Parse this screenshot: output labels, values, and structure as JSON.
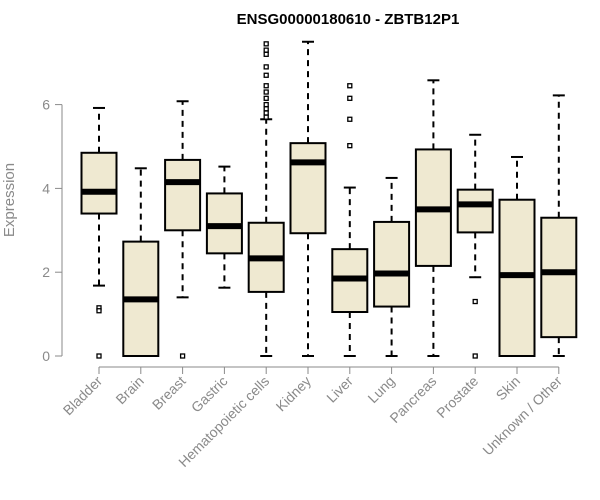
{
  "chart_data": {
    "type": "boxplot",
    "title": "ENSG00000180610 - ZBTB12P1",
    "xlabel": "",
    "ylabel": "Expression",
    "ylim": [
      0,
      7.6
    ],
    "yticks": [
      0,
      2,
      4,
      6
    ],
    "grid": false,
    "box_color": "#efe9d1",
    "categories": [
      "Bladder",
      "Brain",
      "Breast",
      "Gastric",
      "Hematopoietic cells",
      "Kidney",
      "Liver",
      "Lung",
      "Pancreas",
      "Prostate",
      "Skin",
      "Unknown / Other"
    ],
    "series": [
      {
        "category": "Bladder",
        "whisker_low": 1.68,
        "q1": 3.4,
        "median": 3.92,
        "q3": 4.85,
        "whisker_high": 5.92,
        "outliers": [
          1.15,
          1.08,
          0.0
        ]
      },
      {
        "category": "Brain",
        "whisker_low": 0.0,
        "q1": 0.0,
        "median": 1.35,
        "q3": 2.73,
        "whisker_high": 4.48,
        "outliers": []
      },
      {
        "category": "Breast",
        "whisker_low": 1.4,
        "q1": 3.0,
        "median": 4.15,
        "q3": 4.68,
        "whisker_high": 6.08,
        "outliers": [
          0.0
        ]
      },
      {
        "category": "Gastric",
        "whisker_low": 1.63,
        "q1": 2.45,
        "median": 3.1,
        "q3": 3.88,
        "whisker_high": 4.52,
        "outliers": []
      },
      {
        "category": "Hematopoietic cells",
        "whisker_low": 0.0,
        "q1": 1.53,
        "median": 2.33,
        "q3": 3.18,
        "whisker_high": 5.65,
        "outliers": [
          7.45,
          7.3,
          7.2,
          6.9,
          6.7,
          6.45,
          6.3,
          6.15,
          6.0,
          5.9,
          5.8,
          5.7
        ]
      },
      {
        "category": "Kidney",
        "whisker_low": 0.0,
        "q1": 2.93,
        "median": 4.62,
        "q3": 5.08,
        "whisker_high": 7.5,
        "outliers": []
      },
      {
        "category": "Liver",
        "whisker_low": 0.0,
        "q1": 1.05,
        "median": 1.85,
        "q3": 2.55,
        "whisker_high": 4.02,
        "outliers": [
          6.45,
          6.15,
          5.65,
          5.02
        ]
      },
      {
        "category": "Lung",
        "whisker_low": 0.0,
        "q1": 1.18,
        "median": 1.97,
        "q3": 3.2,
        "whisker_high": 4.25,
        "outliers": []
      },
      {
        "category": "Pancreas",
        "whisker_low": 0.0,
        "q1": 2.15,
        "median": 3.5,
        "q3": 4.93,
        "whisker_high": 6.58,
        "outliers": []
      },
      {
        "category": "Prostate",
        "whisker_low": 1.88,
        "q1": 2.95,
        "median": 3.62,
        "q3": 3.97,
        "whisker_high": 5.28,
        "outliers": [
          1.3,
          0.0
        ]
      },
      {
        "category": "Skin",
        "whisker_low": 0.0,
        "q1": 0.0,
        "median": 1.93,
        "q3": 3.73,
        "whisker_high": 4.75,
        "outliers": []
      },
      {
        "category": "Unknown / Other",
        "whisker_low": 0.0,
        "q1": 0.45,
        "median": 2.0,
        "q3": 3.3,
        "whisker_high": 6.22,
        "outliers": []
      }
    ]
  }
}
